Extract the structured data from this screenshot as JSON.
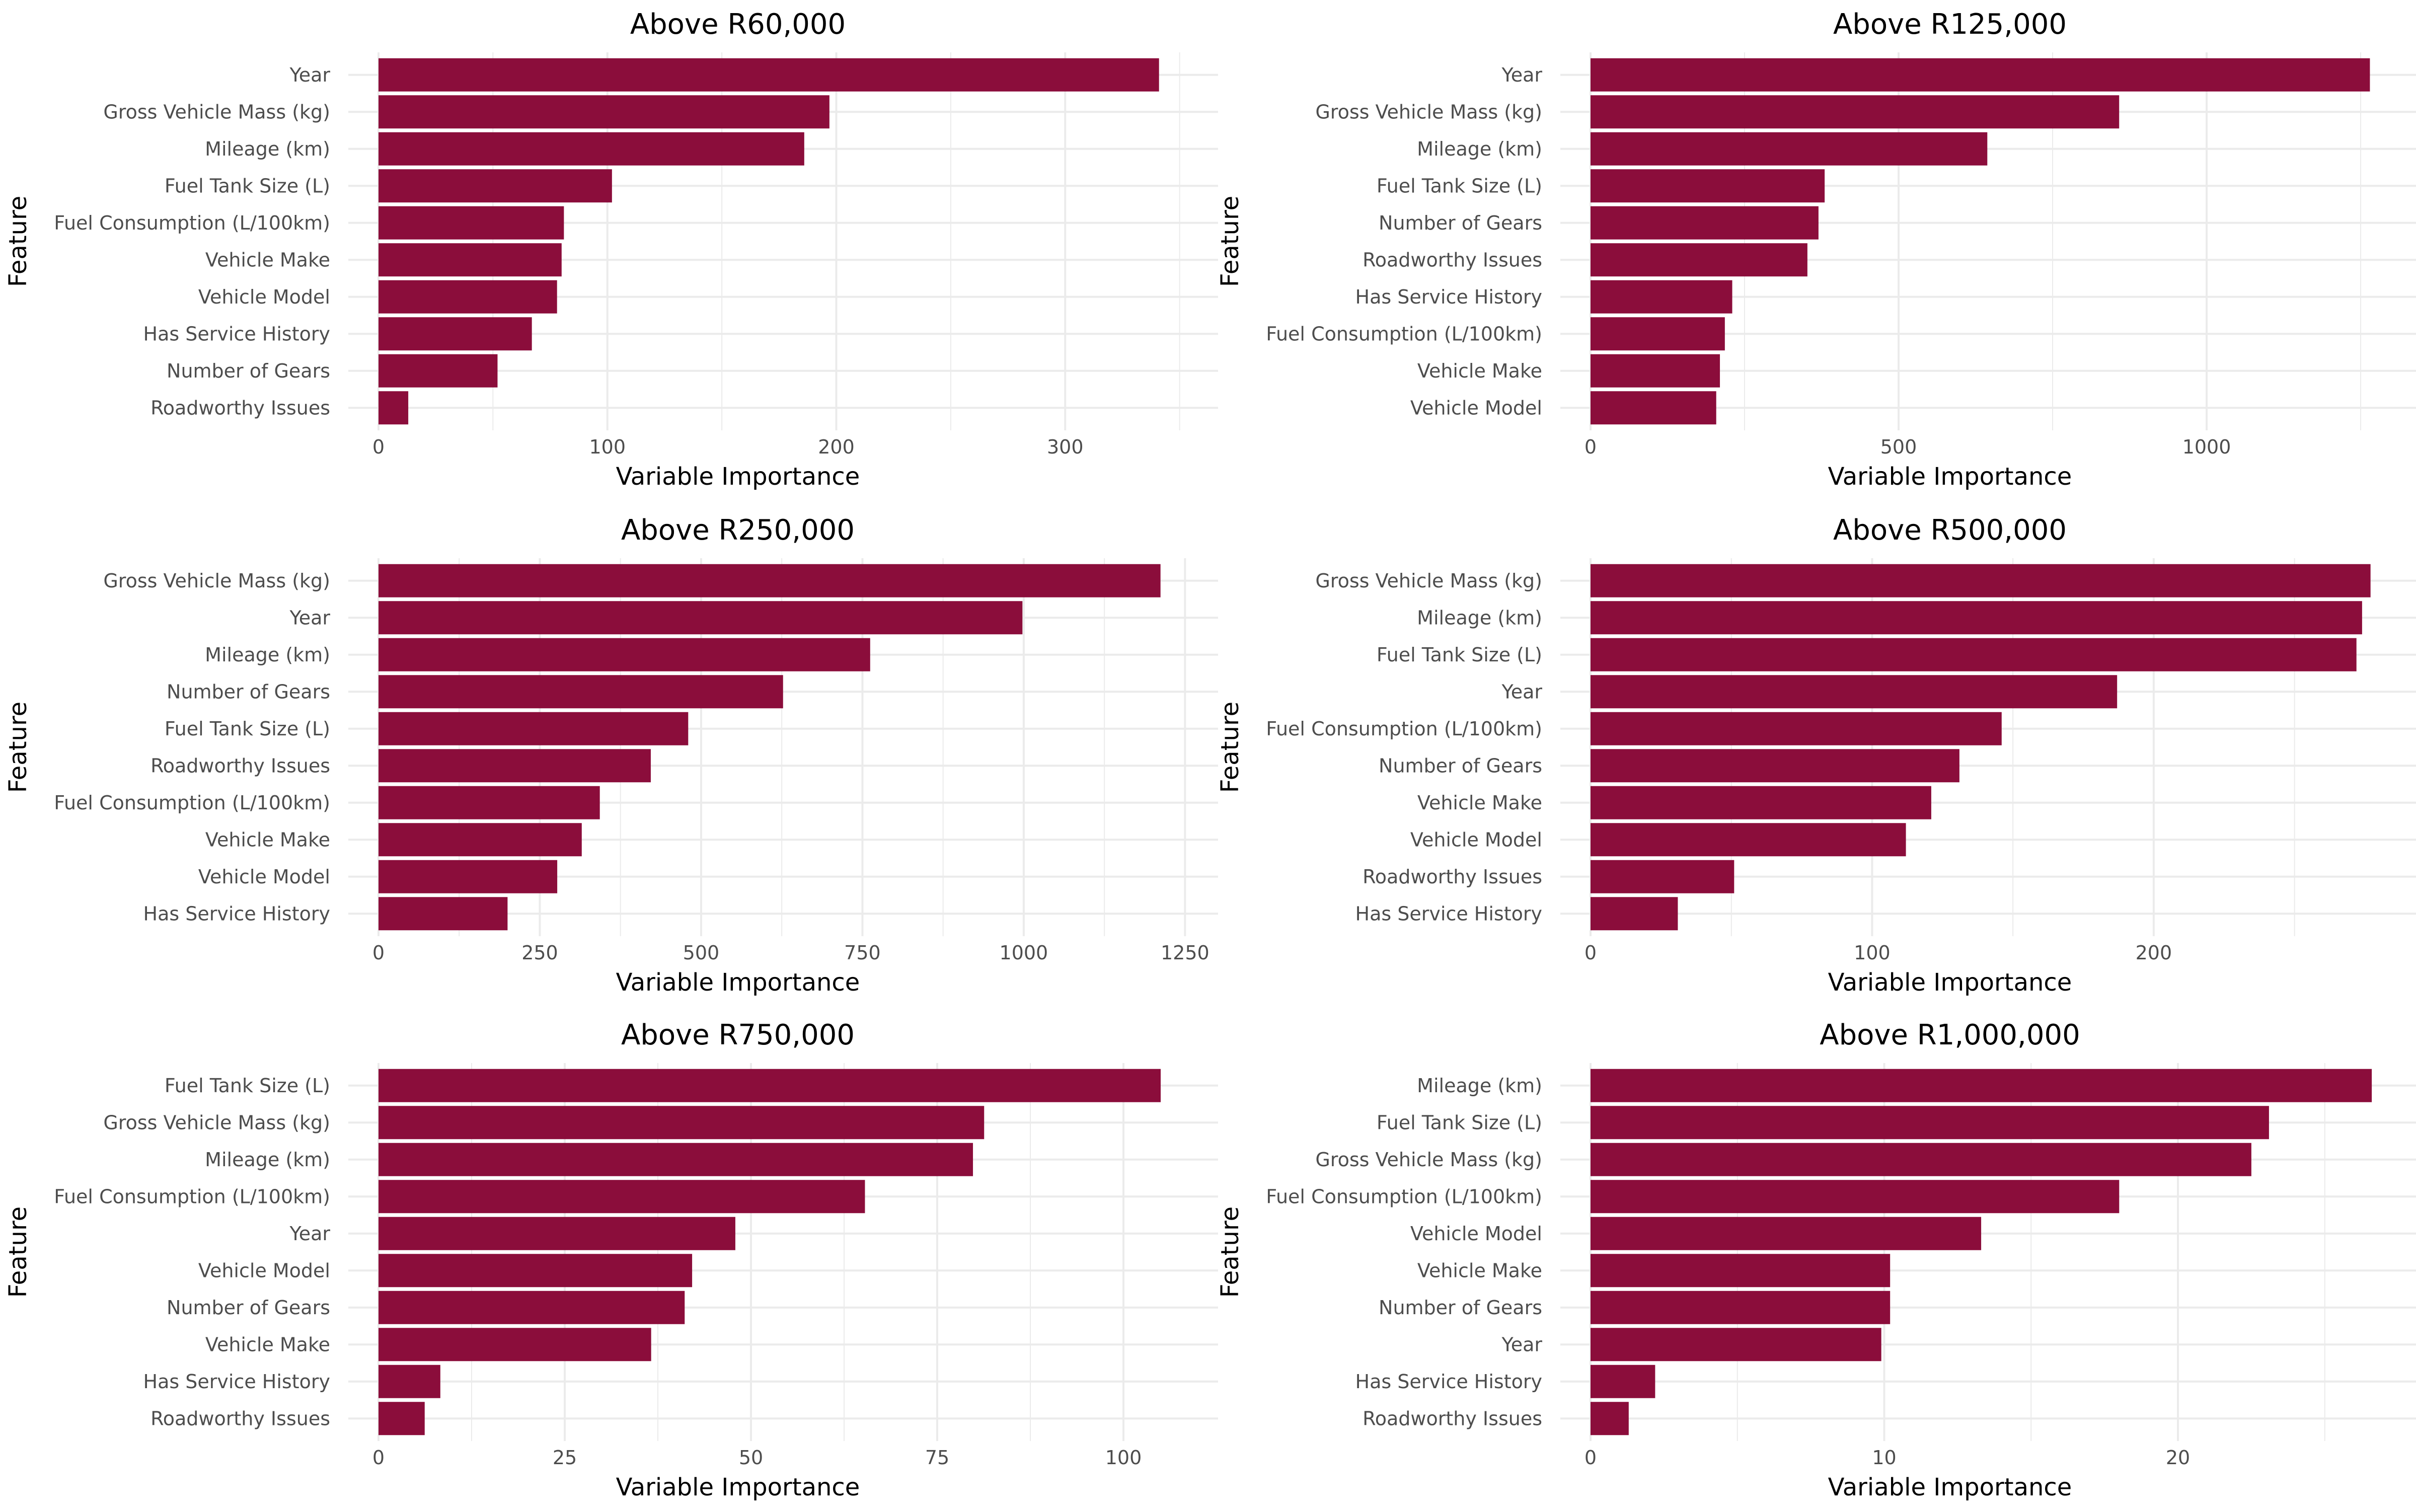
{
  "chart_data": [
    {
      "type": "bar",
      "orientation": "horizontal",
      "title": "Above R60,000",
      "xlabel": "Variable Importance",
      "ylabel": "Feature",
      "categories": [
        "Year",
        "Gross Vehicle Mass (kg)",
        "Mileage (km)",
        "Fuel Tank Size (L)",
        "Fuel Consumption (L/100km)",
        "Vehicle Make",
        "Vehicle Model",
        "Has Service History",
        "Number of Gears",
        "Roadworthy Issues"
      ],
      "values": [
        341,
        197,
        186,
        102,
        81,
        80,
        78,
        67,
        52,
        13
      ],
      "xlim": [
        0,
        358
      ],
      "ticks": [
        0,
        100,
        200,
        300
      ],
      "tick_labels": [
        "0",
        "100",
        "200",
        "300"
      ],
      "minor_ticks": [
        50,
        150,
        250,
        350
      ],
      "color": "#8b0d3b",
      "grid": true
    },
    {
      "type": "bar",
      "orientation": "horizontal",
      "title": "Above R125,000",
      "xlabel": "Variable Importance",
      "ylabel": "Feature",
      "categories": [
        "Year",
        "Gross Vehicle Mass (kg)",
        "Mileage (km)",
        "Fuel Tank Size (L)",
        "Number of Gears",
        "Roadworthy Issues",
        "Has Service History",
        "Fuel Consumption (L/100km)",
        "Vehicle Make",
        "Vehicle Model"
      ],
      "values": [
        1265,
        858,
        644,
        380,
        370,
        352,
        230,
        218,
        210,
        204
      ],
      "xlim": [
        0,
        1330
      ],
      "ticks": [
        0,
        500,
        1000
      ],
      "tick_labels": [
        "0",
        "500",
        "1000"
      ],
      "minor_ticks": [
        250,
        750,
        1250
      ],
      "color": "#8b0d3b",
      "grid": true
    },
    {
      "type": "bar",
      "orientation": "horizontal",
      "title": "Above R250,000",
      "xlabel": "Variable Importance",
      "ylabel": "Feature",
      "categories": [
        "Gross Vehicle Mass (kg)",
        "Year",
        "Mileage (km)",
        "Number of Gears",
        "Fuel Tank Size (L)",
        "Roadworthy Issues",
        "Fuel Consumption (L/100km)",
        "Vehicle Make",
        "Vehicle Model",
        "Has Service History"
      ],
      "values": [
        1212,
        998,
        762,
        627,
        480,
        422,
        343,
        315,
        277,
        200
      ],
      "xlim": [
        0,
        1270
      ],
      "ticks": [
        0,
        250,
        500,
        750,
        1000,
        1250
      ],
      "tick_labels": [
        "0",
        "250",
        "500",
        "750",
        "1000",
        "1250"
      ],
      "minor_ticks": [
        125,
        375,
        625,
        875,
        1125
      ],
      "color": "#8b0d3b",
      "grid": true
    },
    {
      "type": "bar",
      "orientation": "horizontal",
      "title": "Above R500,000",
      "xlabel": "Variable Importance",
      "ylabel": "Feature",
      "categories": [
        "Gross Vehicle Mass (kg)",
        "Mileage (km)",
        "Fuel Tank Size (L)",
        "Year",
        "Fuel Consumption (L/100km)",
        "Number of Gears",
        "Vehicle Make",
        "Vehicle Model",
        "Roadworthy Issues",
        "Has Service History"
      ],
      "values": [
        277,
        274,
        272,
        187,
        146,
        131,
        121,
        112,
        51,
        31
      ],
      "xlim": [
        0,
        291
      ],
      "ticks": [
        0,
        100,
        200
      ],
      "tick_labels": [
        "0",
        "100",
        "200"
      ],
      "minor_ticks": [
        50,
        150,
        250
      ],
      "color": "#8b0d3b",
      "grid": true
    },
    {
      "type": "bar",
      "orientation": "horizontal",
      "title": "Above R750,000",
      "xlabel": "Variable Importance",
      "ylabel": "Feature",
      "categories": [
        "Fuel Tank Size (L)",
        "Gross Vehicle Mass (kg)",
        "Mileage (km)",
        "Fuel Consumption (L/100km)",
        "Year",
        "Vehicle Model",
        "Number of Gears",
        "Vehicle Make",
        "Has Service History",
        "Roadworthy Issues"
      ],
      "values": [
        105,
        81.3,
        79.8,
        65.3,
        47.9,
        42.1,
        41.1,
        36.6,
        8.3,
        6.2
      ],
      "xlim": [
        0,
        110
      ],
      "ticks": [
        0,
        25,
        50,
        75,
        100
      ],
      "tick_labels": [
        "0",
        "25",
        "50",
        "75",
        "100"
      ],
      "minor_ticks": [
        12.5,
        37.5,
        62.5,
        87.5
      ],
      "color": "#8b0d3b",
      "grid": true
    },
    {
      "type": "bar",
      "orientation": "horizontal",
      "title": "Above R1,000,000",
      "xlabel": "Variable Importance",
      "ylabel": "Feature",
      "categories": [
        "Mileage (km)",
        "Fuel Tank Size (L)",
        "Gross Vehicle Mass (kg)",
        "Fuel Consumption (L/100km)",
        "Vehicle Model",
        "Vehicle Make",
        "Number of Gears",
        "Year",
        "Has Service History",
        "Roadworthy Issues"
      ],
      "values": [
        26.6,
        23.1,
        22.5,
        18.0,
        13.3,
        10.2,
        10.2,
        9.9,
        2.2,
        1.3
      ],
      "xlim": [
        0,
        27.9
      ],
      "ticks": [
        0,
        10,
        20
      ],
      "tick_labels": [
        "0",
        "10",
        "20"
      ],
      "minor_ticks": [
        5,
        15,
        25
      ],
      "color": "#8b0d3b",
      "grid": true
    }
  ]
}
